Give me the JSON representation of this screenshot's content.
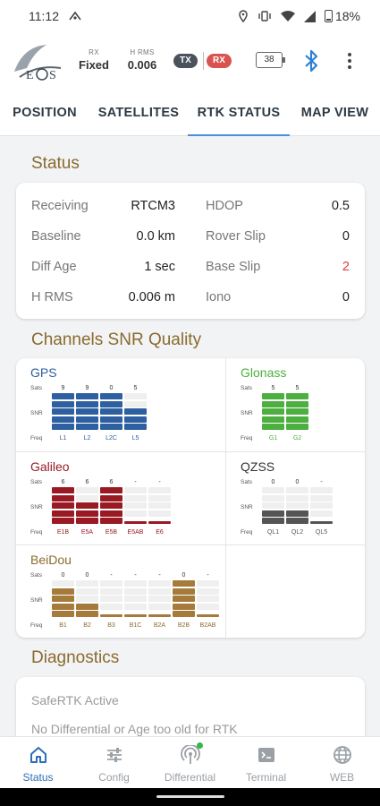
{
  "statusbar": {
    "time": "11:12",
    "battery_pct": "18%"
  },
  "header": {
    "rx_label": "RX",
    "rx_value": "Fixed",
    "hrms_label": "H RMS",
    "hrms_value": "0.006",
    "tx_pill": "TX",
    "rx_pill": "RX",
    "battery_value": "38"
  },
  "tabs": [
    {
      "label": "POSITION"
    },
    {
      "label": "SATELLITES"
    },
    {
      "label": "RTK STATUS"
    },
    {
      "label": "MAP VIEW"
    }
  ],
  "active_tab": "RTK STATUS",
  "status": {
    "title": "Status",
    "rows": [
      {
        "l1": "Receiving",
        "v1": "RTCM3",
        "l2": "HDOP",
        "v2": "0.5"
      },
      {
        "l1": "Baseline",
        "v1": "0.0 km",
        "l2": "Rover Slip",
        "v2": "0"
      },
      {
        "l1": "Diff Age",
        "v1": "1 sec",
        "l2": "Base Slip",
        "v2": "2"
      },
      {
        "l1": "H RMS",
        "v1": "0.006 m",
        "l2": "Iono",
        "v2": "0"
      }
    ]
  },
  "snr": {
    "title": "Channels SNR Quality",
    "row_labels": {
      "sats": "Sats",
      "snr": "SNR",
      "freq": "Freq"
    },
    "constellations": [
      {
        "name": "GPS",
        "color": "#2e5fa0",
        "name_color": "#2e5fa0",
        "freq_color": "#2e5fa0",
        "bands": [
          {
            "freq": "L1",
            "sats": "9",
            "level": 5
          },
          {
            "freq": "L2",
            "sats": "9",
            "level": 5
          },
          {
            "freq": "L2C",
            "sats": "0",
            "level": 5
          },
          {
            "freq": "L5",
            "sats": "5",
            "level": 3
          }
        ]
      },
      {
        "name": "Glonass",
        "color": "#4caf3f",
        "name_color": "#4caf3f",
        "freq_color": "#4caf3f",
        "bands": [
          {
            "freq": "G1",
            "sats": "5",
            "level": 5
          },
          {
            "freq": "G2",
            "sats": "5",
            "level": 5
          }
        ]
      },
      {
        "name": "Galileo",
        "color": "#9a1a24",
        "name_color": "#9a1a24",
        "freq_color": "#9a1a24",
        "bands": [
          {
            "freq": "E1B",
            "sats": "6",
            "level": 5
          },
          {
            "freq": "E5A",
            "sats": "6",
            "level": 3
          },
          {
            "freq": "E5B",
            "sats": "6",
            "level": 5
          },
          {
            "freq": "E5AB",
            "sats": "-",
            "level": 0
          },
          {
            "freq": "E6",
            "sats": "-",
            "level": 0
          }
        ]
      },
      {
        "name": "QZSS",
        "color": "#555555",
        "name_color": "#333333",
        "freq_color": "#555555",
        "bands": [
          {
            "freq": "QL1",
            "sats": "0",
            "level": 2
          },
          {
            "freq": "QL2",
            "sats": "0",
            "level": 2
          },
          {
            "freq": "QL5",
            "sats": "-",
            "level": 0
          }
        ]
      },
      {
        "name": "BeiDou",
        "color": "#a57a3a",
        "name_color": "#8b6a2d",
        "freq_color": "#8b6a2d",
        "bands": [
          {
            "freq": "B1",
            "sats": "0",
            "level": 4
          },
          {
            "freq": "B2",
            "sats": "0",
            "level": 2
          },
          {
            "freq": "B3",
            "sats": "-",
            "level": 0
          },
          {
            "freq": "B1C",
            "sats": "-",
            "level": 0
          },
          {
            "freq": "B2A",
            "sats": "-",
            "level": 0
          },
          {
            "freq": "B2B",
            "sats": "0",
            "level": 5
          },
          {
            "freq": "B2AB",
            "sats": "-",
            "level": 0
          }
        ]
      }
    ]
  },
  "diagnostics": {
    "title": "Diagnostics",
    "line1": "SafeRTK Active",
    "line2": "No Differential or Age too old for RTK"
  },
  "bottom_nav": [
    {
      "label": "Status",
      "icon": "home-icon"
    },
    {
      "label": "Config",
      "icon": "sliders-icon"
    },
    {
      "label": "Differential",
      "icon": "antenna-icon"
    },
    {
      "label": "Terminal",
      "icon": "terminal-icon"
    },
    {
      "label": "WEB",
      "icon": "globe-icon"
    }
  ]
}
